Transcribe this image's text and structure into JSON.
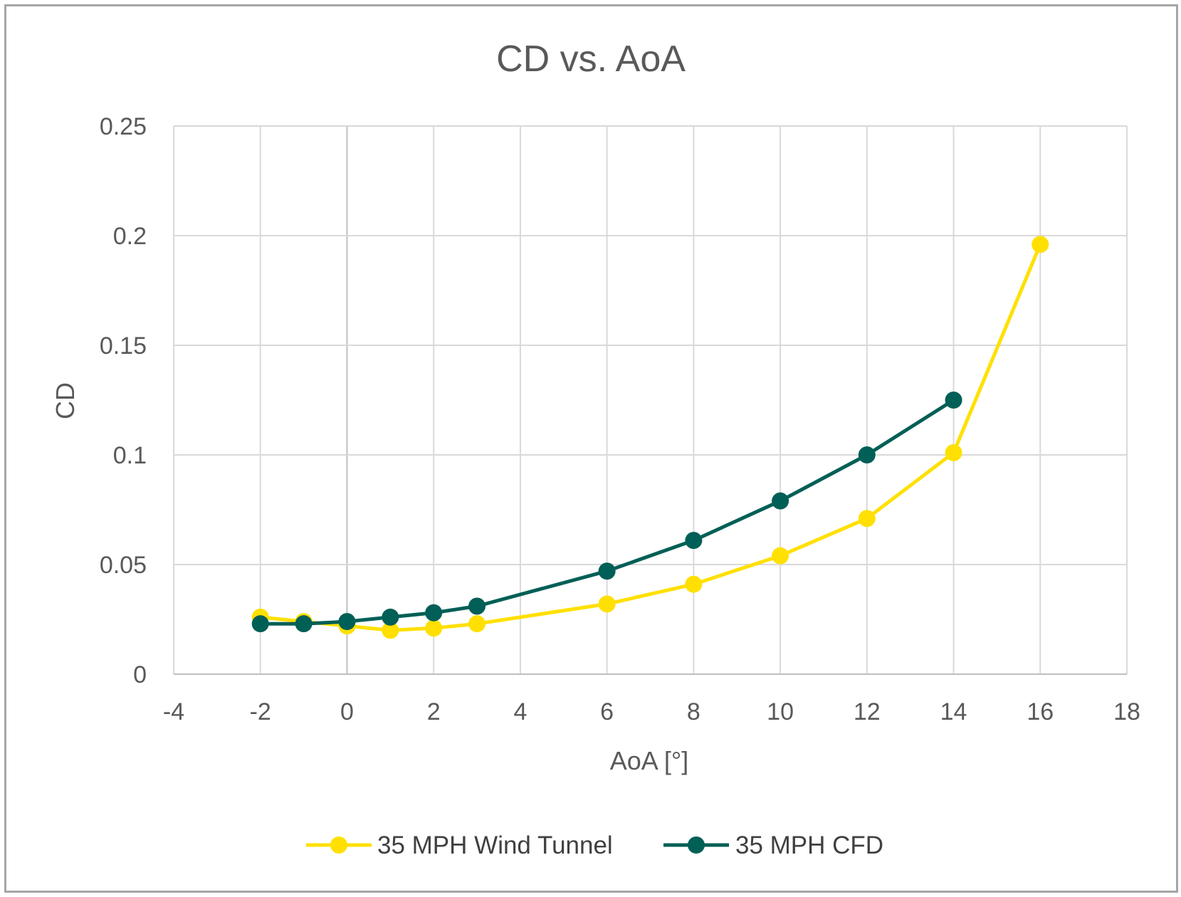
{
  "chart_data": {
    "type": "line",
    "title": "CD vs. AoA",
    "xlabel": "AoA [°]",
    "ylabel": "CD",
    "xlim": [
      -4,
      18
    ],
    "ylim": [
      0,
      0.25
    ],
    "xticks": [
      -4,
      -2,
      0,
      2,
      4,
      6,
      8,
      10,
      12,
      14,
      16,
      18
    ],
    "xtick_labels": [
      "-4",
      "-2",
      "0",
      "2",
      "4",
      "6",
      "8",
      "10",
      "12",
      "14",
      "16",
      "18"
    ],
    "yticks": [
      0,
      0.05,
      0.1,
      0.15,
      0.2,
      0.25
    ],
    "ytick_labels": [
      "0",
      "0.05",
      "0.1",
      "0.15",
      "0.2",
      "0.25"
    ],
    "grid": true,
    "legend": "bottom",
    "series": [
      {
        "name": "35 MPH Wind Tunnel",
        "color": "#ffe000",
        "x": [
          -2,
          -1,
          0,
          1,
          2,
          3,
          6,
          8,
          10,
          12,
          14,
          16
        ],
        "y": [
          0.026,
          0.024,
          0.022,
          0.02,
          0.021,
          0.023,
          0.032,
          0.041,
          0.054,
          0.071,
          0.101,
          0.196
        ]
      },
      {
        "name": "35 MPH CFD",
        "color": "#005f56",
        "x": [
          -2,
          -1,
          0,
          1,
          2,
          3,
          6,
          8,
          10,
          12,
          14
        ],
        "y": [
          0.023,
          0.023,
          0.024,
          0.026,
          0.028,
          0.031,
          0.047,
          0.061,
          0.079,
          0.1,
          0.125
        ]
      }
    ]
  }
}
